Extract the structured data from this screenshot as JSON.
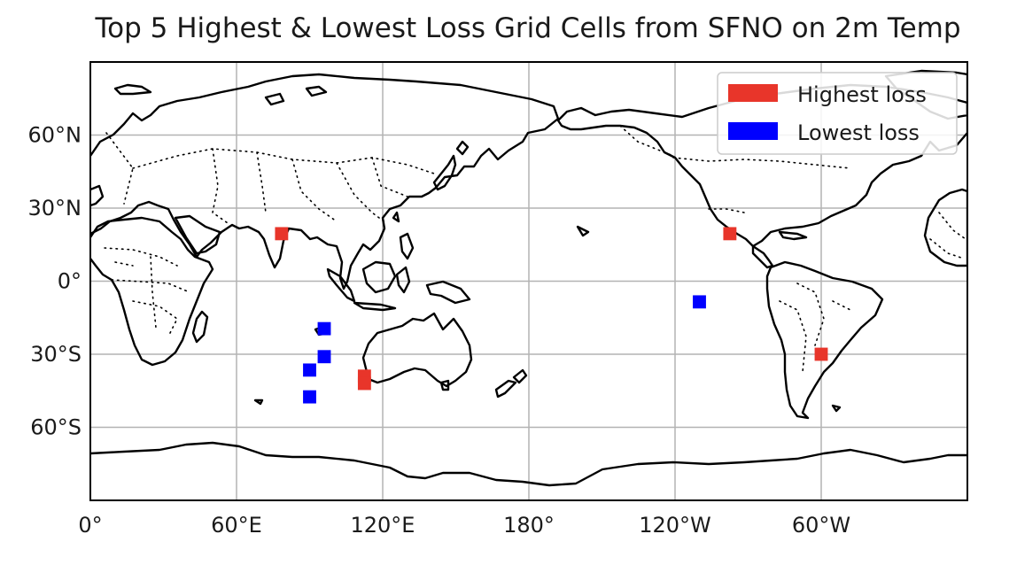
{
  "title": "Top 5 Highest & Lowest Loss Grid Cells from SFNO on 2m Temp",
  "map": {
    "projection": "PlateCarree",
    "central_longitude": 180,
    "lon_range": [
      0,
      360
    ],
    "lat_range": [
      -90,
      90
    ],
    "gridlines": true,
    "xticks": [
      {
        "lon": 0,
        "label": "0°"
      },
      {
        "lon": 60,
        "label": "60°E"
      },
      {
        "lon": 120,
        "label": "120°E"
      },
      {
        "lon": 180,
        "label": "180°"
      },
      {
        "lon": 240,
        "label": "120°W"
      },
      {
        "lon": 300,
        "label": "60°W"
      }
    ],
    "yticks": [
      {
        "lat": 60,
        "label": "60°N"
      },
      {
        "lat": 30,
        "label": "30°N"
      },
      {
        "lat": 0,
        "label": "0°"
      },
      {
        "lat": -30,
        "label": "30°S"
      },
      {
        "lat": -60,
        "label": "60°S"
      }
    ],
    "extra_vertical_gridlines": [
      360
    ]
  },
  "legend": {
    "position": "upper right",
    "items": [
      {
        "label": "Highest loss",
        "color": "#e8352a"
      },
      {
        "label": "Lowest loss",
        "color": "#0000ff"
      }
    ]
  },
  "highest_loss_cells": [
    {
      "lat": 19.5,
      "lon": 78.5
    },
    {
      "lat": -39,
      "lon": 112.5
    },
    {
      "lat": -42,
      "lon": 112.5
    },
    {
      "lat": 19.5,
      "lon": 262.5
    },
    {
      "lat": -30,
      "lon": 300
    }
  ],
  "lowest_loss_cells": [
    {
      "lat": -19.5,
      "lon": 96
    },
    {
      "lat": -31,
      "lon": 96
    },
    {
      "lat": -36.5,
      "lon": 90
    },
    {
      "lat": -47.5,
      "lon": 90
    },
    {
      "lat": -8.5,
      "lon": 250
    }
  ],
  "colors": {
    "highest": "#e8352a",
    "lowest": "#0000ff"
  }
}
